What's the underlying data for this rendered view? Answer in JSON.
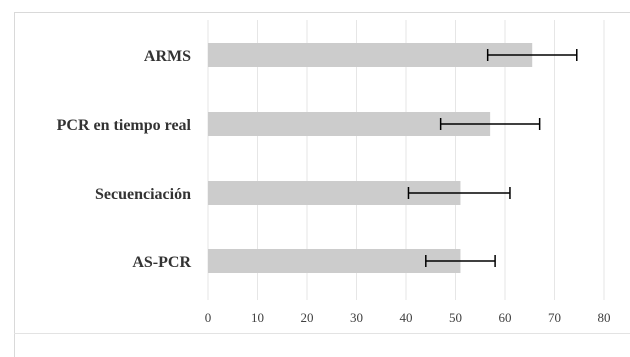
{
  "chart_data": {
    "type": "bar",
    "orientation": "horizontal",
    "categories": [
      "ARMS",
      "PCR en tiempo real",
      "Secuenciación",
      "AS-PCR"
    ],
    "values": [
      65.5,
      57.0,
      51.0,
      51.0
    ],
    "error_low": [
      56.5,
      47.0,
      40.5,
      44.0
    ],
    "error_high": [
      74.5,
      67.0,
      61.0,
      58.0
    ],
    "title": "",
    "xlabel": "",
    "ylabel": "",
    "xlim": [
      0,
      80
    ],
    "xticks": [
      0,
      10,
      20,
      30,
      40,
      50,
      60,
      70,
      80
    ],
    "grid": "vertical",
    "legend": "none",
    "colors": {
      "bar": "#cccccc",
      "error_bar": "#000000",
      "gridline": "#e6e6e6",
      "text": "#333333"
    }
  }
}
